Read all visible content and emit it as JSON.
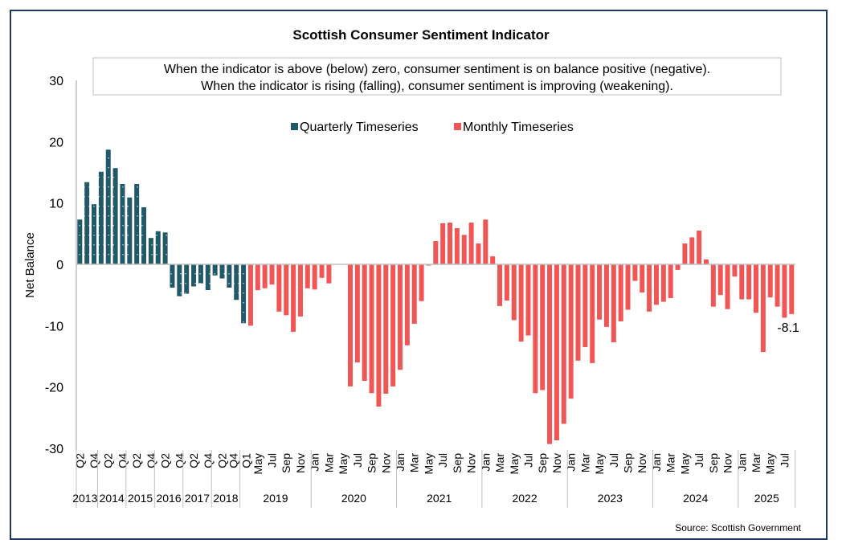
{
  "chart_data": {
    "type": "bar",
    "title": "Scottish Consumer Sentiment Indicator",
    "annotation": [
      "When the indicator is above (below) zero, consumer sentiment is on balance positive (negative).",
      "When the indicator is rising (falling), consumer sentiment is improving (weakening)."
    ],
    "ylabel": "Net Balance",
    "xlabel": "",
    "ylim": [
      -30,
      30
    ],
    "yticks": [
      30,
      20,
      10,
      0,
      -10,
      -20,
      -30
    ],
    "grid": false,
    "legend_position": "top-center",
    "source": "Source: Scottish Government",
    "colors": {
      "quarterly": "#215968",
      "monthly": "#f05656",
      "frame": "#1f3864",
      "axis": "#bfbfbf"
    },
    "series": [
      {
        "name": "Quarterly Timeseries",
        "x": [
          "2013 Q2",
          "2013 Q3",
          "2013 Q4",
          "2014 Q1",
          "2014 Q2",
          "2014 Q3",
          "2014 Q4",
          "2015 Q1",
          "2015 Q2",
          "2015 Q3",
          "2015 Q4",
          "2016 Q1",
          "2016 Q2",
          "2016 Q3",
          "2016 Q4",
          "2017 Q1",
          "2017 Q2",
          "2017 Q3",
          "2017 Q4",
          "2018 Q1",
          "2018 Q2",
          "2018 Q3",
          "2018 Q4",
          "2019 Q1"
        ],
        "values": [
          7.3,
          13.4,
          9.8,
          15.1,
          18.7,
          15.7,
          13.1,
          10.9,
          13.1,
          9.3,
          4.3,
          5.4,
          5.2,
          -3.8,
          -5.2,
          -4.8,
          -3.6,
          -3.1,
          -4.2,
          -1.8,
          -2.3,
          -3.8,
          -5.8,
          -9.6
        ]
      },
      {
        "name": "Monthly Timeseries",
        "x": [
          "Apr 2019",
          "May 2019",
          "Jun 2019",
          "Jul 2019",
          "Aug 2019",
          "Sep 2019",
          "Oct 2019",
          "Nov 2019",
          "Dec 2019",
          "Jan 2020",
          "Feb 2020",
          "Mar 2020",
          "Apr 2020",
          "May 2020",
          "Jun 2020",
          "Jul 2020",
          "Aug 2020",
          "Sep 2020",
          "Oct 2020",
          "Nov 2020",
          "Dec 2020",
          "Jan 2021",
          "Feb 2021",
          "Mar 2021",
          "Apr 2021",
          "May 2021",
          "Jun 2021",
          "Jul 2021",
          "Aug 2021",
          "Sep 2021",
          "Oct 2021",
          "Nov 2021",
          "Dec 2021",
          "Jan 2022",
          "Feb 2022",
          "Mar 2022",
          "Apr 2022",
          "May 2022",
          "Jun 2022",
          "Jul 2022",
          "Aug 2022",
          "Sep 2022",
          "Oct 2022",
          "Nov 2022",
          "Dec 2022",
          "Jan 2023",
          "Feb 2023",
          "Mar 2023",
          "Apr 2023",
          "May 2023",
          "Jun 2023",
          "Jul 2023",
          "Aug 2023",
          "Sep 2023",
          "Oct 2023",
          "Nov 2023",
          "Dec 2023",
          "Jan 2024",
          "Feb 2024",
          "Mar 2024",
          "Apr 2024",
          "May 2024",
          "Jun 2024",
          "Jul 2024",
          "Aug 2024",
          "Sep 2024",
          "Oct 2024",
          "Nov 2024",
          "Dec 2024",
          "Jan 2025",
          "Feb 2025",
          "Mar 2025",
          "Apr 2025",
          "May 2025",
          "Jun 2025",
          "Jul 2025",
          "Aug 2025"
        ],
        "values": [
          -10.0,
          -4.2,
          -3.9,
          -3.3,
          -7.7,
          -8.3,
          -11.0,
          -8.5,
          -3.9,
          -4.1,
          -2.2,
          -3.1,
          null,
          null,
          -19.9,
          -16.0,
          -19.0,
          -21.0,
          -23.2,
          -21.1,
          -19.9,
          -17.2,
          -13.2,
          -9.7,
          -6.0,
          -0.2,
          3.8,
          6.7,
          6.8,
          5.9,
          4.8,
          6.8,
          3.4,
          7.3,
          1.3,
          -6.8,
          -5.9,
          -9.1,
          -12.6,
          -11.6,
          -21.0,
          -20.5,
          -29.3,
          -28.7,
          -26.0,
          -21.9,
          -15.7,
          -13.5,
          -16.1,
          -9.0,
          -10.2,
          -12.7,
          -9.3,
          -7.4,
          -2.7,
          -4.6,
          -7.7,
          -6.6,
          -6.1,
          -5.5,
          -0.9,
          3.4,
          4.4,
          5.5,
          0.8,
          -6.9,
          -5.0,
          -7.3,
          -2.0,
          -5.7,
          -5.7,
          -7.9,
          -14.3,
          -5.4,
          -6.9,
          -8.7,
          -8.1
        ]
      }
    ],
    "tick_labels": [
      "Q2",
      "",
      "Q4",
      "",
      "Q2",
      "",
      "Q4",
      "",
      "Q2",
      "",
      "Q4",
      "",
      "Q2",
      "",
      "Q4",
      "",
      "Q2",
      "",
      "Q4",
      "",
      "Q2",
      "",
      "Q4",
      "Q1",
      "",
      "May",
      "",
      "Jul",
      "",
      "Sep",
      "",
      "Nov",
      "",
      "Jan",
      "",
      "Mar",
      "",
      "May",
      "",
      "Jul",
      "",
      "Sep",
      "",
      "Nov",
      "",
      "Jan",
      "",
      "Mar",
      "",
      "May",
      "",
      "Jul",
      "",
      "Sep",
      "",
      "Nov",
      "",
      "Jan",
      "",
      "Mar",
      "",
      "May",
      "",
      "Jul",
      "",
      "Sep",
      "",
      "Nov",
      "",
      "Jan",
      "",
      "Mar",
      "",
      "May",
      "",
      "Jul",
      "",
      "Sep",
      "",
      "Nov",
      "",
      "Jan",
      "",
      "Mar",
      "",
      "May",
      "",
      "Jul",
      "",
      "Sep",
      "",
      "Nov",
      "",
      "Jan",
      "",
      "Mar",
      "",
      "May",
      "",
      "Jul",
      ""
    ],
    "year_groups": [
      {
        "label": "2013",
        "count": 3
      },
      {
        "label": "2014",
        "count": 4
      },
      {
        "label": "2015",
        "count": 4
      },
      {
        "label": "2016",
        "count": 4
      },
      {
        "label": "2017",
        "count": 4
      },
      {
        "label": "2018",
        "count": 4
      },
      {
        "label": "2019",
        "count": 10
      },
      {
        "label": "2020",
        "count": 12
      },
      {
        "label": "2021",
        "count": 12
      },
      {
        "label": "2022",
        "count": 12
      },
      {
        "label": "2023",
        "count": 12
      },
      {
        "label": "2024",
        "count": 12
      },
      {
        "label": "2025",
        "count": 8
      }
    ],
    "data_labels": [
      {
        "series": "Monthly Timeseries",
        "x": "Aug 2025",
        "text": "-8.1"
      }
    ]
  }
}
